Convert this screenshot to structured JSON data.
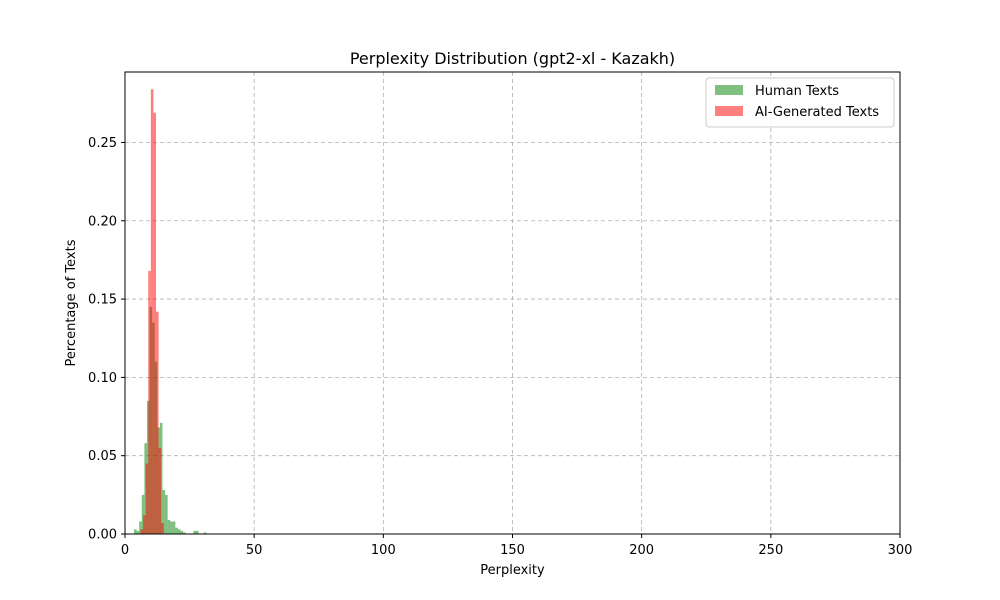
{
  "chart_data": {
    "type": "bar",
    "title": "Perplexity Distribution (gpt2-xl - Kazakh)",
    "xlabel": "Perplexity",
    "ylabel": "Percentage of Texts",
    "xlim": [
      0,
      300
    ],
    "ylim": [
      0,
      0.295
    ],
    "xticks": [
      0,
      50,
      100,
      150,
      200,
      250,
      300
    ],
    "xtick_labels": [
      "0",
      "50",
      "100",
      "150",
      "200",
      "250",
      "300"
    ],
    "yticks": [
      0.0,
      0.05,
      0.1,
      0.15,
      0.2,
      0.25
    ],
    "ytick_labels": [
      "0.00",
      "0.05",
      "0.10",
      "0.15",
      "0.20",
      "0.25"
    ],
    "grid": true,
    "legend_position": "top-right",
    "series": [
      {
        "name": "Human Texts",
        "color": "#008000",
        "opacity": 0.5,
        "bins": [
          {
            "x0": 3.5,
            "x1": 4.5,
            "y": 0.003
          },
          {
            "x0": 4.5,
            "x1": 5.5,
            "y": 0.002
          },
          {
            "x0": 5.5,
            "x1": 6.5,
            "y": 0.008
          },
          {
            "x0": 6.5,
            "x1": 7.5,
            "y": 0.025
          },
          {
            "x0": 7.5,
            "x1": 8.5,
            "y": 0.058
          },
          {
            "x0": 8.5,
            "x1": 9.5,
            "y": 0.085
          },
          {
            "x0": 9.5,
            "x1": 10.5,
            "y": 0.145
          },
          {
            "x0": 10.5,
            "x1": 11.5,
            "y": 0.135
          },
          {
            "x0": 11.5,
            "x1": 12.5,
            "y": 0.11
          },
          {
            "x0": 12.5,
            "x1": 13.5,
            "y": 0.068
          },
          {
            "x0": 13.5,
            "x1": 14.5,
            "y": 0.071
          },
          {
            "x0": 14.5,
            "x1": 15.5,
            "y": 0.028
          },
          {
            "x0": 15.5,
            "x1": 16.5,
            "y": 0.025
          },
          {
            "x0": 16.5,
            "x1": 17.5,
            "y": 0.009
          },
          {
            "x0": 17.5,
            "x1": 18.5,
            "y": 0.008
          },
          {
            "x0": 18.5,
            "x1": 19.5,
            "y": 0.008
          },
          {
            "x0": 19.5,
            "x1": 20.5,
            "y": 0.004
          },
          {
            "x0": 20.5,
            "x1": 21.5,
            "y": 0.003
          },
          {
            "x0": 21.5,
            "x1": 22.5,
            "y": 0.002
          },
          {
            "x0": 22.5,
            "x1": 23.5,
            "y": 0.001
          },
          {
            "x0": 26.5,
            "x1": 27.5,
            "y": 0.002
          },
          {
            "x0": 27.5,
            "x1": 28.5,
            "y": 0.002
          },
          {
            "x0": 30.5,
            "x1": 31.5,
            "y": 0.001
          }
        ]
      },
      {
        "name": "AI-Generated Texts",
        "color": "#ff0000",
        "opacity": 0.5,
        "bins": [
          {
            "x0": 6.0,
            "x1": 7.0,
            "y": 0.003
          },
          {
            "x0": 7.0,
            "x1": 8.0,
            "y": 0.012
          },
          {
            "x0": 8.0,
            "x1": 9.0,
            "y": 0.045
          },
          {
            "x0": 9.0,
            "x1": 10.0,
            "y": 0.168
          },
          {
            "x0": 10.0,
            "x1": 11.0,
            "y": 0.284
          },
          {
            "x0": 11.0,
            "x1": 12.0,
            "y": 0.269
          },
          {
            "x0": 12.0,
            "x1": 13.0,
            "y": 0.142
          },
          {
            "x0": 13.0,
            "x1": 14.0,
            "y": 0.055
          },
          {
            "x0": 14.0,
            "x1": 15.0,
            "y": 0.007
          }
        ]
      }
    ]
  }
}
